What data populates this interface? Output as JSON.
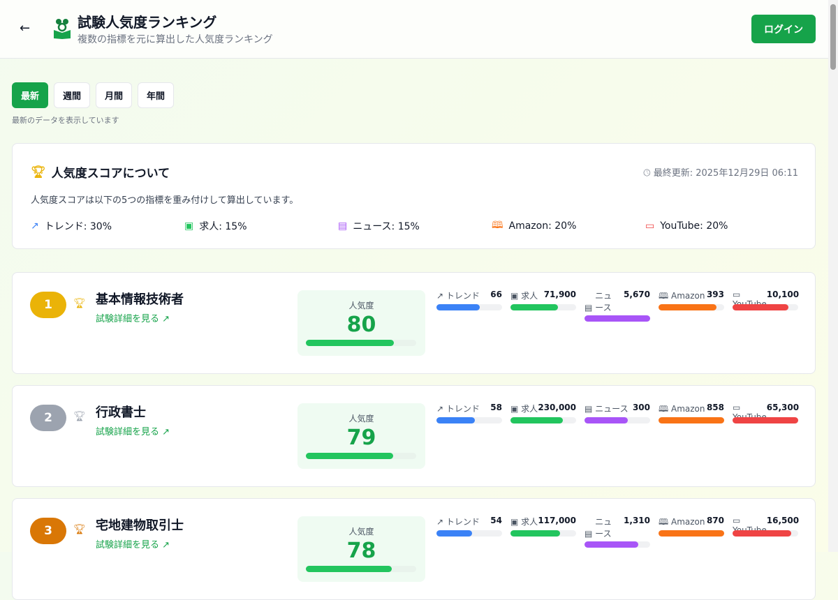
{
  "header": {
    "title": "試験人気度ランキング",
    "subtitle": "複数の指標を元に算出した人気度ランキング",
    "login": "ログイン"
  },
  "tabs": [
    {
      "label": "最新",
      "active": true
    },
    {
      "label": "週間"
    },
    {
      "label": "月間"
    },
    {
      "label": "年間"
    }
  ],
  "tab_note": "最新のデータを表示しています",
  "info": {
    "title": "人気度スコアについて",
    "updated": "最終更新: 2025年12月29日 06:11",
    "desc": "人気度スコアは以下の5つの指標を重み付けして算出しています。",
    "weights": [
      {
        "label": "トレンド: 30%",
        "icon": "trend-icon",
        "color": "#3b82f6"
      },
      {
        "label": "求人: 15%",
        "icon": "briefcase-icon",
        "color": "#22c55e"
      },
      {
        "label": "ニュース: 15%",
        "icon": "newspaper-icon",
        "color": "#a855f7"
      },
      {
        "label": "Amazon: 20%",
        "icon": "book-icon",
        "color": "#f97316"
      },
      {
        "label": "YouTube: 20%",
        "icon": "video-icon",
        "color": "#ef4444"
      }
    ]
  },
  "labels": {
    "popularity": "人気度",
    "detail": "試験詳細を見る"
  },
  "metric_labels": [
    "トレンド",
    "求人",
    "ニュース",
    "Amazon",
    "YouTube"
  ],
  "metric_colors": [
    "#3b82f6",
    "#22c55e",
    "#a855f7",
    "#f97316",
    "#ef4444"
  ],
  "rankings": [
    {
      "rank": "1",
      "name": "基本情報技術者",
      "score": "80",
      "score_pct": 80,
      "rank_color": "#eab308",
      "trophy_color": "#eab308",
      "metrics": [
        "66",
        "71,900",
        "5,670",
        "393",
        "10,100"
      ],
      "fills": [
        66,
        72,
        100,
        88,
        85
      ]
    },
    {
      "rank": "2",
      "name": "行政書士",
      "score": "79",
      "score_pct": 79,
      "rank_color": "#9ca3af",
      "trophy_color": "#9ca3af",
      "metrics": [
        "58",
        "230,000",
        "300",
        "858",
        "65,300"
      ],
      "fills": [
        58,
        80,
        66,
        100,
        100
      ]
    },
    {
      "rank": "3",
      "name": "宅地建物取引士",
      "score": "78",
      "score_pct": 78,
      "rank_color": "#d97706",
      "trophy_color": "#d97706",
      "metrics": [
        "54",
        "117,000",
        "1,310",
        "870",
        "16,500"
      ],
      "fills": [
        54,
        76,
        82,
        100,
        89
      ]
    }
  ]
}
